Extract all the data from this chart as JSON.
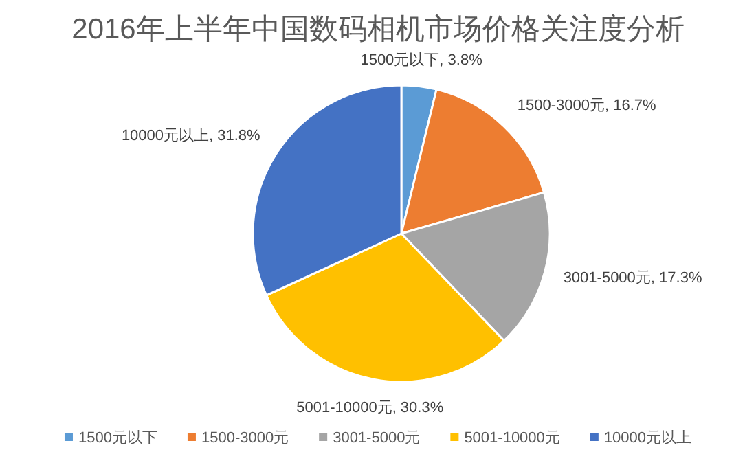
{
  "chart_data": {
    "type": "pie",
    "title": "2016年上半年中国数码相机市场价格关注度分析",
    "categories": [
      "1500元以下",
      "1500-3000元",
      "3001-5000元",
      "5001-10000元",
      "10000元以上"
    ],
    "values": [
      3.8,
      16.7,
      17.3,
      30.3,
      31.8
    ],
    "colors": [
      "#5b9bd5",
      "#ed7d31",
      "#a5a5a5",
      "#ffc000",
      "#4472c4"
    ],
    "value_labels": [
      "1500元以下, 3.8%",
      "1500-3000元, 16.7%",
      "3001-5000元, 17.3%",
      "5001-10000元, 30.3%",
      "10000元以上, 31.8%"
    ],
    "legend": "bottom"
  }
}
